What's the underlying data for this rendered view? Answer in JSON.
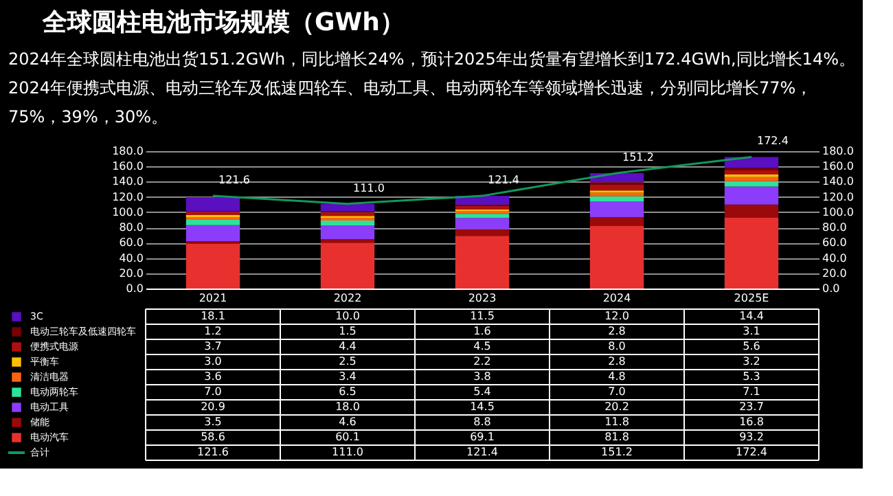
{
  "chart_data": {
    "type": "bar",
    "stacked": true,
    "title": "全球圆柱电池市场规模（GWh）",
    "annotations": [
      "2024年全球圆柱电池出货151.2GWh，同比增长24%，预计2025年出货量有望增长到172.4GWh,同比增长14%。",
      "2024年便携式电源、电动三轮车及低速四轮车、电动工具、电动两轮车等领域增长迅速，分别同比增长77%，",
      "75%，39%，30%。"
    ],
    "categories": [
      "2021",
      "2022",
      "2023",
      "2024",
      "2025E"
    ],
    "series": [
      {
        "name": "电动汽车",
        "color": "#e8312f",
        "values": [
          58.6,
          60.1,
          69.1,
          81.8,
          93.2
        ],
        "value_labels": [
          "58.6",
          "60.1",
          "69.1",
          "81.8",
          "93.2"
        ]
      },
      {
        "name": "储能",
        "color": "#9b0a0a",
        "values": [
          3.5,
          4.6,
          8.8,
          11.8,
          16.8
        ],
        "value_labels": [
          "3.5",
          "4.6",
          "8.8",
          "11.8",
          "16.8"
        ]
      },
      {
        "name": "电动工具",
        "color": "#8b3dfa",
        "values": [
          20.9,
          18.0,
          14.5,
          20.2,
          23.7
        ],
        "value_labels": [
          "20.9",
          "18.0",
          "14.5",
          "20.2",
          "23.7"
        ]
      },
      {
        "name": "电动两轮车",
        "color": "#2de39b",
        "values": [
          7.0,
          6.5,
          5.4,
          7.0,
          7.1
        ],
        "value_labels": [
          "7.0",
          "6.5",
          "5.4",
          "7.0",
          "7.1"
        ]
      },
      {
        "name": "清洁电器",
        "color": "#ff6412",
        "values": [
          3.6,
          3.4,
          3.8,
          4.8,
          5.3
        ],
        "value_labels": [
          "3.6",
          "3.4",
          "3.8",
          "4.8",
          "5.3"
        ]
      },
      {
        "name": "平衡车",
        "color": "#ffc000",
        "values": [
          3.0,
          2.5,
          2.2,
          2.8,
          3.2
        ],
        "value_labels": [
          "3.0",
          "2.5",
          "2.2",
          "2.8",
          "3.2"
        ]
      },
      {
        "name": "便携式电源",
        "color": "#b00f0f",
        "values": [
          3.7,
          4.4,
          4.5,
          8.0,
          5.6
        ],
        "value_labels": [
          "3.7",
          "4.4",
          "4.5",
          "8.0",
          "5.6"
        ]
      },
      {
        "name": "电动三轮车及低速四轮车",
        "color": "#7a0000",
        "values": [
          1.2,
          1.5,
          1.6,
          2.8,
          3.1
        ],
        "value_labels": [
          "1.2",
          "1.5",
          "1.6",
          "2.8",
          "3.1"
        ]
      },
      {
        "name": "3C",
        "color": "#5a0fc0",
        "values": [
          18.1,
          10.0,
          11.5,
          12.0,
          14.4
        ],
        "value_labels": [
          "18.1",
          "10.0",
          "11.5",
          "12.0",
          "14.4"
        ]
      },
      {
        "name": "合计",
        "type": "line",
        "axis": "y2",
        "color": "#13985a",
        "values": [
          121.6,
          111.0,
          121.4,
          151.2,
          172.4
        ],
        "value_labels": [
          "121.6",
          "111.0",
          "121.4",
          "151.2",
          "172.4"
        ]
      }
    ],
    "ylim": [
      0,
      180
    ],
    "yticks": [
      {
        "value": 0,
        "label": "0.0"
      },
      {
        "value": 20,
        "label": "20.0"
      },
      {
        "value": 40,
        "label": "40.0"
      },
      {
        "value": 60,
        "label": "60.0"
      },
      {
        "value": 80,
        "label": "80.0"
      },
      {
        "value": 100,
        "label": "100.0"
      },
      {
        "value": 120,
        "label": "120.0"
      },
      {
        "value": 140,
        "label": "140.0"
      },
      {
        "value": 160,
        "label": "160.0"
      },
      {
        "value": 180,
        "label": "180.0"
      }
    ],
    "y2lim": [
      0,
      180
    ],
    "y2ticks": [
      {
        "value": 0,
        "label": "0.0"
      },
      {
        "value": 20,
        "label": "20.0"
      },
      {
        "value": 40,
        "label": "40.0"
      },
      {
        "value": 60,
        "label": "60.0"
      },
      {
        "value": 80,
        "label": "80.0"
      },
      {
        "value": 100,
        "label": "100.0"
      },
      {
        "value": 120,
        "label": "120.0"
      },
      {
        "value": 140,
        "label": "140.0"
      },
      {
        "value": 160,
        "label": "160.0"
      },
      {
        "value": 180,
        "label": "180.0"
      }
    ],
    "grid": "y",
    "legend": "bottom",
    "marker": "none",
    "line_style": "solid"
  }
}
